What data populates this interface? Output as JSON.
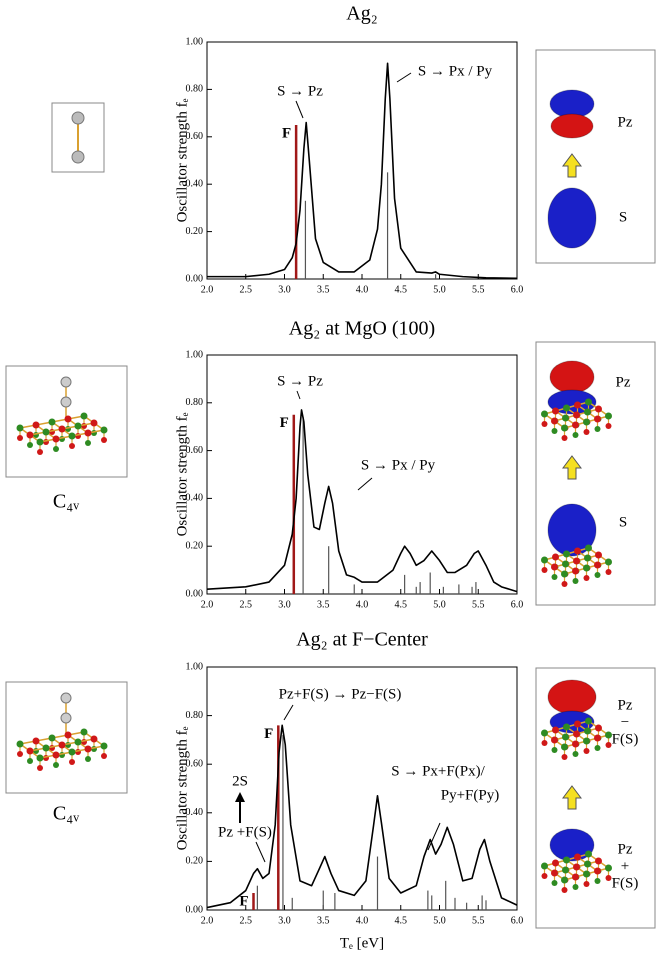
{
  "chart_data": [
    {
      "type": "line",
      "title": "Ag₂",
      "ylabel": "Oscillator strength fₑ",
      "x": [
        2.0,
        2.5,
        2.8,
        3.0,
        3.1,
        3.15,
        3.2,
        3.25,
        3.28,
        3.32,
        3.4,
        3.5,
        3.7,
        3.9,
        4.1,
        4.2,
        4.25,
        4.3,
        4.33,
        4.36,
        4.42,
        4.5,
        4.7,
        4.9,
        4.95,
        5.0,
        5.3,
        5.6,
        6.0
      ],
      "values": [
        0.01,
        0.01,
        0.02,
        0.04,
        0.09,
        0.15,
        0.29,
        0.55,
        0.66,
        0.5,
        0.17,
        0.07,
        0.03,
        0.03,
        0.08,
        0.21,
        0.4,
        0.76,
        0.91,
        0.76,
        0.34,
        0.13,
        0.03,
        0.025,
        0.03,
        0.02,
        0.01,
        0.005,
        0.003
      ],
      "color": "#000000",
      "sticks": {
        "x": [
          3.27,
          4.33,
          4.95
        ],
        "values": [
          0.33,
          0.45,
          0.02
        ],
        "color": "#555555"
      },
      "f_lines": {
        "label": "F",
        "x": [
          3.15
        ],
        "values": [
          0.65
        ],
        "color": "#a01818"
      },
      "annotations": [
        "S → Pz",
        "S → Px / Py"
      ],
      "side_labels": [
        [
          "Pz"
        ],
        [
          "S"
        ]
      ],
      "xlim": [
        2,
        6
      ],
      "ylim": [
        0,
        1
      ],
      "xticks": [
        {
          "value": 2,
          "label": "2.0"
        },
        {
          "value": 2.5,
          "label": "2.5"
        },
        {
          "value": 3,
          "label": "3.0"
        },
        {
          "value": 3.5,
          "label": "3.5"
        },
        {
          "value": 4,
          "label": "4.0"
        },
        {
          "value": 4.5,
          "label": "4.5"
        },
        {
          "value": 5,
          "label": "5.0"
        },
        {
          "value": 5.5,
          "label": "5.5"
        },
        {
          "value": 6,
          "label": "6.0"
        }
      ],
      "yticks": [
        {
          "value": 0,
          "label": "0.00"
        },
        {
          "value": 0.2,
          "label": "0.20"
        },
        {
          "value": 0.4,
          "label": "0.40"
        },
        {
          "value": 0.6,
          "label": "0.60"
        },
        {
          "value": 0.8,
          "label": "0.80"
        },
        {
          "value": 1,
          "label": "1.00"
        }
      ]
    },
    {
      "type": "line",
      "title": "Ag₂ at MgO (100)",
      "ylabel": "Oscillator strength fₑ",
      "symmetry": "C₄ᵥ",
      "x": [
        2.0,
        2.5,
        2.8,
        3.0,
        3.1,
        3.15,
        3.2,
        3.22,
        3.25,
        3.3,
        3.38,
        3.45,
        3.52,
        3.57,
        3.62,
        3.7,
        3.8,
        3.9,
        4.0,
        4.2,
        4.4,
        4.5,
        4.55,
        4.62,
        4.7,
        4.8,
        4.9,
        5.0,
        5.1,
        5.2,
        5.25,
        5.35,
        5.45,
        5.5,
        5.6,
        5.7,
        5.8,
        6.0
      ],
      "values": [
        0.02,
        0.03,
        0.05,
        0.12,
        0.25,
        0.4,
        0.7,
        0.77,
        0.72,
        0.5,
        0.28,
        0.27,
        0.38,
        0.45,
        0.38,
        0.18,
        0.08,
        0.07,
        0.05,
        0.05,
        0.1,
        0.17,
        0.2,
        0.17,
        0.12,
        0.14,
        0.18,
        0.14,
        0.09,
        0.09,
        0.1,
        0.12,
        0.17,
        0.18,
        0.12,
        0.05,
        0.03,
        0.01
      ],
      "color": "#000000",
      "sticks": {
        "x": [
          3.24,
          3.57,
          3.9,
          4.55,
          4.7,
          4.75,
          4.88,
          5.05,
          5.25,
          5.42,
          5.47
        ],
        "values": [
          0.74,
          0.2,
          0.04,
          0.08,
          0.03,
          0.05,
          0.09,
          0.03,
          0.04,
          0.03,
          0.05
        ],
        "color": "#555555"
      },
      "f_lines": {
        "label": "F",
        "x": [
          3.12
        ],
        "values": [
          0.75
        ],
        "color": "#a01818"
      },
      "annotations": [
        "S → Pz",
        "S → Px / Py"
      ],
      "side_labels": [
        [
          "Pz"
        ],
        [
          "S"
        ]
      ],
      "xlim": [
        2,
        6
      ],
      "ylim": [
        0,
        1
      ],
      "xticks": [
        {
          "value": 2,
          "label": "2.0"
        },
        {
          "value": 2.5,
          "label": "2.5"
        },
        {
          "value": 3,
          "label": "3.0"
        },
        {
          "value": 3.5,
          "label": "3.5"
        },
        {
          "value": 4,
          "label": "4.0"
        },
        {
          "value": 4.5,
          "label": "4.5"
        },
        {
          "value": 5,
          "label": "5.0"
        },
        {
          "value": 5.5,
          "label": "5.5"
        },
        {
          "value": 6,
          "label": "6.0"
        }
      ],
      "yticks": [
        {
          "value": 0,
          "label": "0.00"
        },
        {
          "value": 0.2,
          "label": "0.20"
        },
        {
          "value": 0.4,
          "label": "0.40"
        },
        {
          "value": 0.6,
          "label": "0.60"
        },
        {
          "value": 0.8,
          "label": "0.80"
        },
        {
          "value": 1,
          "label": "1.00"
        }
      ]
    },
    {
      "type": "line",
      "title": "Ag₂ at F−Center",
      "ylabel": "Oscillator strength fₑ",
      "xlabel": "Tₑ [eV]",
      "symmetry": "C₄ᵥ",
      "x": [
        2.0,
        2.3,
        2.5,
        2.6,
        2.65,
        2.72,
        2.8,
        2.88,
        2.93,
        2.97,
        3.01,
        3.08,
        3.2,
        3.35,
        3.45,
        3.52,
        3.6,
        3.7,
        3.9,
        4.05,
        4.15,
        4.2,
        4.25,
        4.35,
        4.5,
        4.7,
        4.8,
        4.88,
        4.95,
        5.02,
        5.1,
        5.18,
        5.3,
        5.42,
        5.52,
        5.58,
        5.65,
        5.8,
        6.0
      ],
      "values": [
        0.01,
        0.03,
        0.08,
        0.15,
        0.17,
        0.13,
        0.15,
        0.35,
        0.65,
        0.76,
        0.68,
        0.35,
        0.12,
        0.1,
        0.17,
        0.22,
        0.15,
        0.08,
        0.06,
        0.12,
        0.35,
        0.47,
        0.36,
        0.13,
        0.07,
        0.1,
        0.22,
        0.29,
        0.23,
        0.27,
        0.34,
        0.27,
        0.12,
        0.13,
        0.25,
        0.29,
        0.2,
        0.05,
        0.02
      ],
      "color": "#000000",
      "sticks": {
        "x": [
          2.65,
          2.98,
          3.1,
          3.5,
          3.65,
          4.2,
          4.85,
          4.9,
          5.08,
          5.2,
          5.35,
          5.55,
          5.6
        ],
        "values": [
          0.1,
          0.72,
          0.05,
          0.08,
          0.07,
          0.22,
          0.08,
          0.06,
          0.12,
          0.05,
          0.03,
          0.06,
          0.04
        ],
        "color": "#555555"
      },
      "f_lines": {
        "label": "F",
        "x": [
          2.6,
          2.92
        ],
        "values": [
          0.07,
          0.76
        ],
        "color": "#a01818"
      },
      "annotations": [
        "Pz+F(S) → Pz−F(S)",
        "S → Px+F(Px)/",
        "Py+F(Py)",
        "2S",
        "Pz +F(S)"
      ],
      "side_labels": [
        [
          "Pz",
          "−",
          "F(S)"
        ],
        [
          "Pz",
          "+",
          "F(S)"
        ]
      ],
      "xlim": [
        2,
        6
      ],
      "ylim": [
        0,
        1
      ],
      "xticks": [
        {
          "value": 2,
          "label": "2.0"
        },
        {
          "value": 2.5,
          "label": "2.5"
        },
        {
          "value": 3,
          "label": "3.0"
        },
        {
          "value": 3.5,
          "label": "3.5"
        },
        {
          "value": 4,
          "label": "4.0"
        },
        {
          "value": 4.5,
          "label": "4.5"
        },
        {
          "value": 5,
          "label": "5.0"
        },
        {
          "value": 5.5,
          "label": "5.5"
        },
        {
          "value": 6,
          "label": "6.0"
        }
      ],
      "yticks": [
        {
          "value": 0,
          "label": "0.00"
        },
        {
          "value": 0.2,
          "label": "0.20"
        },
        {
          "value": 0.4,
          "label": "0.40"
        },
        {
          "value": 0.6,
          "label": "0.60"
        },
        {
          "value": 0.8,
          "label": "0.80"
        },
        {
          "value": 1,
          "label": "1.00"
        }
      ]
    }
  ]
}
